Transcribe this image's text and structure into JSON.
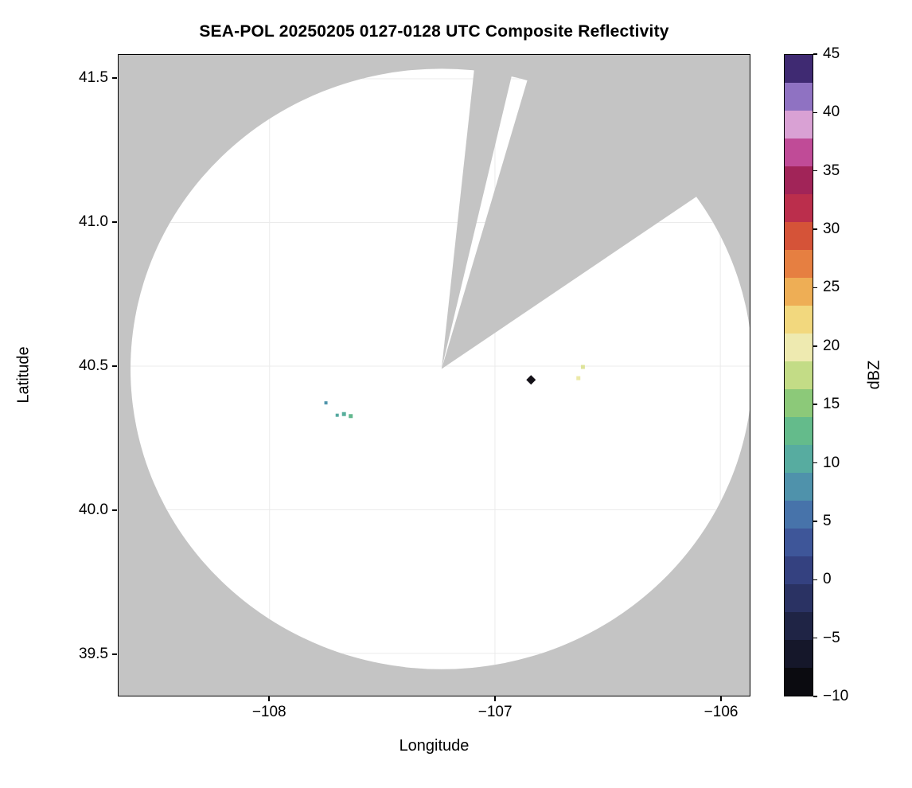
{
  "chart_data": {
    "type": "scatter",
    "subtype": "radar-composite-reflectivity",
    "title": "SEA-POL 20250205 0127-0128 UTC Composite Reflectivity",
    "xlabel": "Longitude",
    "ylabel": "Latitude",
    "xlim": [
      -108.67,
      -105.87
    ],
    "ylim": [
      39.353,
      41.583
    ],
    "grid": true,
    "grid_color": "#ebebeb",
    "xticks": [
      {
        "value": -108,
        "label": "−108"
      },
      {
        "value": -107,
        "label": "−107"
      },
      {
        "value": -106,
        "label": "−106"
      }
    ],
    "yticks": [
      {
        "value": 39.5,
        "label": "39.5"
      },
      {
        "value": 40.0,
        "label": "40.0"
      },
      {
        "value": 40.5,
        "label": "40.5"
      },
      {
        "value": 41.0,
        "label": "41.0"
      },
      {
        "value": 41.5,
        "label": "41.5"
      }
    ],
    "radar_mask": {
      "description": "white circular radar coverage area on gray masked background, with two gray blocked-azimuth wedges radiating from radar center",
      "center_lon": -107.237,
      "center_lat": 40.49,
      "radius_lon_deg": 1.38,
      "radius_lat_deg": 1.045,
      "outside_color": "#c4c4c4",
      "inside_color": "#ffffff",
      "wedges_deg_from_north": [
        {
          "az_start": 6,
          "az_end": 13
        },
        {
          "az_start": 16,
          "az_end": 55
        }
      ]
    },
    "points": [
      {
        "lon": -106.84,
        "lat": 40.452,
        "dbz": -8,
        "shape": "diamond",
        "size": 6,
        "color": "#141118"
      },
      {
        "lon": -106.61,
        "lat": 40.497,
        "dbz": 18,
        "shape": "square",
        "size": 5,
        "color": "#dde39a"
      },
      {
        "lon": -106.63,
        "lat": 40.458,
        "dbz": 19,
        "shape": "square",
        "size": 5,
        "color": "#ece9a8"
      },
      {
        "lon": -107.75,
        "lat": 40.372,
        "dbz": 7,
        "shape": "square",
        "size": 4,
        "color": "#4f94ab"
      },
      {
        "lon": -107.7,
        "lat": 40.329,
        "dbz": 10,
        "shape": "square",
        "size": 4,
        "color": "#54a89f"
      },
      {
        "lon": -107.67,
        "lat": 40.333,
        "dbz": 12,
        "shape": "square",
        "size": 5,
        "color": "#57ae9b"
      },
      {
        "lon": -107.64,
        "lat": 40.326,
        "dbz": 13,
        "shape": "square",
        "size": 5,
        "color": "#63b88e"
      }
    ],
    "colorbar": {
      "label": "dBZ",
      "min": -10,
      "max": 45,
      "segment_step": 2.5,
      "segment_colors": [
        "#0b0b10",
        "#15172a",
        "#1f2445",
        "#2a3263",
        "#344180",
        "#3e5699",
        "#4773aa",
        "#4f92ab",
        "#57aca0",
        "#64bb8b",
        "#8cc979",
        "#c3dc86",
        "#eeeab0",
        "#f2d87e",
        "#eeae55",
        "#e67f41",
        "#d55338",
        "#bb2e4c",
        "#a12458",
        "#c04b97",
        "#d9a1d4",
        "#8f72c2"
      ],
      "top_color": "#3f2a72",
      "ticks": [
        {
          "value": -10,
          "label": "−10"
        },
        {
          "value": -5,
          "label": "−5"
        },
        {
          "value": 0,
          "label": "0"
        },
        {
          "value": 5,
          "label": "5"
        },
        {
          "value": 10,
          "label": "10"
        },
        {
          "value": 15,
          "label": "15"
        },
        {
          "value": 20,
          "label": "20"
        },
        {
          "value": 25,
          "label": "25"
        },
        {
          "value": 30,
          "label": "30"
        },
        {
          "value": 35,
          "label": "35"
        },
        {
          "value": 40,
          "label": "40"
        },
        {
          "value": 45,
          "label": "45"
        }
      ]
    }
  }
}
